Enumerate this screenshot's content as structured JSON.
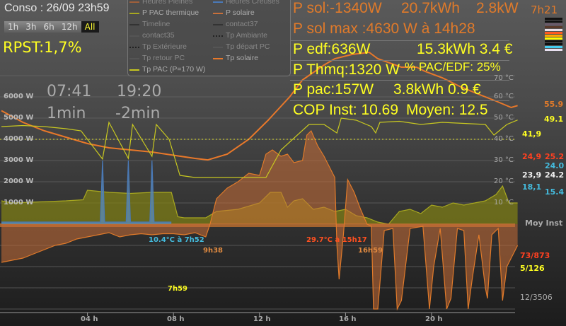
{
  "header": {
    "conso_title": "Conso : 26/09 23h59",
    "zoom_buttons": [
      "1h",
      "3h",
      "6h",
      "12h",
      "All"
    ],
    "zoom_active": "All",
    "rpst": "RPST:1,7%"
  },
  "legend": [
    {
      "label": "Heures Pleines",
      "color": "#a0603a",
      "style": "line"
    },
    {
      "label": "Heures Creuses",
      "color": "#4a7ab8",
      "style": "line"
    },
    {
      "label": "P PAC thermique",
      "color": "#a8a820",
      "style": "line"
    },
    {
      "label": "P solaire",
      "color": "#c8703a",
      "style": "line"
    },
    {
      "label": "Timeline",
      "color": "#333333",
      "style": "line"
    },
    {
      "label": "contact37",
      "color": "#333333",
      "style": "line"
    },
    {
      "label": "contact35",
      "color": "#555555",
      "style": "line"
    },
    {
      "label": "Tp Ambiante",
      "color": "#333333",
      "style": "dots"
    },
    {
      "label": "Tp Extérieure",
      "color": "#333333",
      "style": "dots"
    },
    {
      "label": "Tp départ PC",
      "color": "#555555",
      "style": "line"
    },
    {
      "label": "Tp retour PC",
      "color": "#555555",
      "style": "line"
    },
    {
      "label": "Tp solaire",
      "color": "#e8782a",
      "style": "line"
    },
    {
      "label": "Tp PAC (P=170 W)",
      "color": "#c8c820",
      "style": "line"
    }
  ],
  "stats": {
    "p_sol": "P sol:-1340W",
    "p_sol_kwh": "20.7kWh",
    "p_sol_kw": "2.8kW",
    "p_sol_time": "7h21",
    "p_sol_max": "P sol max :4630 W à 14h28",
    "p_edf": "P edf:636W",
    "p_edf_kwh": "15.3kWh 3.4 €",
    "p_thmq": "P Thmq:1320 W",
    "pac_edf": "% PAC/EDF: 25%",
    "p_pac": "P pac:157W",
    "p_pac_kwh": "3.8kWh 0.9 €",
    "cop_inst": "COP Inst: 10.69",
    "cop_moyen": "Moyen: 12.5"
  },
  "color_bars": [
    "#111111",
    "#111111",
    "#6a5a6a",
    "#5a3a2a",
    "#e8e0e8",
    "#ff5a20",
    "#ffaa00",
    "#ffff00",
    "#111111",
    "#111111",
    "#44ccee",
    "#e8e0f0"
  ],
  "clocks": {
    "sunrise": "07:41",
    "sunset": "19:20",
    "sunrise_delta": "1min",
    "sunset_delta": "-2min"
  },
  "annotations": {
    "ext_min": "10.4°C à 7h52",
    "sol_start": "9h38",
    "ext_max": "29.7°C à 15h17",
    "sol_end": "16h59",
    "pac_time": "7h59"
  },
  "right_panel": {
    "moy_inst": "Moy Inst",
    "hp": "73/873",
    "hc": "5/126",
    "total": "12/3506",
    "temps": [
      {
        "moy": "",
        "inst": "55.9",
        "color": "#e07a2a"
      },
      {
        "moy": "",
        "inst": "49.1",
        "color": "#ffff22"
      },
      {
        "moy": "41,9",
        "inst": "",
        "color": "#ffff22"
      },
      {
        "moy": "24,9",
        "inst": "25.2",
        "color": "#ff4020"
      },
      {
        "moy": "",
        "inst": "24.0",
        "color": "#44bbdd"
      },
      {
        "moy": "23,9",
        "inst": "24.2",
        "color": "#f0f0f0"
      },
      {
        "moy": "18,1",
        "inst": "15.4",
        "color": "#44bbdd"
      }
    ]
  },
  "chart_data": {
    "type": "area",
    "x_unit": "h",
    "xlim": [
      0,
      24
    ],
    "x_ticks": [
      "04 h",
      "08 h",
      "12 h",
      "16 h",
      "20 h"
    ],
    "y_left": {
      "ticks": [
        "1000 W",
        "2000 W",
        "3000 W",
        "4000 W",
        "5000 W",
        "6000 W"
      ],
      "ylim": [
        -4000,
        7000
      ]
    },
    "y_right": {
      "ticks": [
        "10 °C",
        "20 °C",
        "30 °C",
        "40 °C",
        "50 °C",
        "60 °C",
        "70 °C"
      ],
      "ylim": [
        -40,
        70
      ]
    },
    "grid": true,
    "reference_line_c": 40,
    "series": [
      {
        "name": "P solaire",
        "axis": "W",
        "color": "#e07a2a",
        "x": [
          0,
          0.5,
          1,
          1.5,
          2,
          2.5,
          3,
          3.5,
          4,
          4.5,
          5,
          5.5,
          6,
          6.5,
          7,
          7.5,
          8,
          8.5,
          9,
          9.5,
          9.7,
          10,
          10.5,
          11,
          11.5,
          12,
          12.3,
          12.6,
          13,
          13.3,
          13.6,
          14,
          14.2,
          14.4,
          14.7,
          15,
          15.3,
          15.5,
          15.6,
          15.7,
          15.9,
          16.1,
          16.4,
          16.7,
          17,
          17.2,
          17.3,
          17.5,
          17.8,
          18.2,
          18.4,
          18.6,
          19,
          19.6,
          19.9,
          20.1,
          20.4,
          20.7,
          20.9,
          21.2,
          21.5,
          21.7,
          21.9,
          22.2,
          22.5,
          22.6,
          22.8,
          23.1,
          23.3,
          23.5,
          24
        ],
        "y": [
          -1800,
          -1700,
          -1600,
          -1400,
          -1200,
          -1000,
          -900,
          -700,
          -600,
          -500,
          -400,
          -600,
          -500,
          -450,
          -500,
          -450,
          -450,
          -500,
          -400,
          -600,
          0,
          1200,
          1700,
          2000,
          2400,
          2300,
          3300,
          3500,
          3200,
          3300,
          2900,
          3000,
          4200,
          4400,
          3700,
          3200,
          2600,
          2200,
          -1000,
          -2600,
          -500,
          2100,
          1500,
          700,
          0,
          -100,
          -4000,
          -4000,
          -300,
          -200,
          -4000,
          -3600,
          -200,
          -100,
          -4000,
          -2000,
          -200,
          -4000,
          -3500,
          -200,
          -300,
          -4000,
          -2500,
          -500,
          -3000,
          -3500,
          -500,
          -200,
          -3600,
          -2000,
          -1000
        ]
      },
      {
        "name": "P PAC thermique",
        "axis": "W",
        "color": "#a8a820",
        "x": [
          0,
          0.5,
          3,
          3.8,
          4,
          5,
          6,
          7,
          7.9,
          8.2,
          8.5,
          9.5,
          10,
          11,
          11.5,
          12,
          12.5,
          13,
          13.3,
          13.6,
          14,
          14.5,
          15,
          15.5,
          16,
          16.5,
          17,
          17.5,
          18,
          18.5,
          19,
          19.5,
          20,
          20.5,
          21,
          21.5,
          22,
          22.5,
          23,
          23.3,
          23.6,
          24
        ],
        "y": [
          1100,
          1000,
          1100,
          1150,
          1600,
          1500,
          1450,
          1500,
          1500,
          350,
          300,
          300,
          600,
          700,
          850,
          1000,
          1500,
          1500,
          800,
          1100,
          1200,
          700,
          800,
          600,
          700,
          400,
          300,
          100,
          0,
          600,
          700,
          500,
          900,
          800,
          1000,
          900,
          1000,
          1100,
          1400,
          1800,
          1000,
          1000
        ]
      },
      {
        "name": "Heures Creuses",
        "axis": "W",
        "color": "#4a7ab8",
        "x": [
          0,
          4.6,
          4.7,
          4.8,
          5.8,
          5.9,
          6.0,
          6.9,
          7.0,
          7.1,
          7.9
        ],
        "y": [
          100,
          100,
          3000,
          100,
          100,
          3000,
          100,
          100,
          3000,
          100,
          100
        ]
      },
      {
        "name": "Tp solaire",
        "axis": "°C",
        "color": "#e8782a",
        "x": [
          0,
          1,
          2,
          3,
          4,
          5,
          6,
          7,
          8,
          9,
          9.6,
          10.5,
          11.5,
          12.4,
          13.4,
          14,
          15,
          15.5,
          16.3,
          17.1,
          17.5,
          18.6,
          19.3,
          19.7,
          20.5,
          21.3,
          22,
          23,
          23.7,
          24
        ],
        "y": [
          53.5,
          48,
          44,
          41,
          38,
          36,
          35,
          34,
          32.5,
          31,
          30.3,
          33,
          40,
          49,
          60,
          68,
          75,
          78,
          80,
          81,
          78,
          74,
          74,
          72,
          69,
          65,
          62,
          58,
          55,
          55.9
        ]
      },
      {
        "name": "Tp PAC (P=170 W)",
        "axis": "°C",
        "color": "#c8c820",
        "x": [
          0,
          1,
          2,
          3,
          3.7,
          4.7,
          5.0,
          5.9,
          6.1,
          7.0,
          7.2,
          7.8,
          8.3,
          9,
          10,
          11,
          12.3,
          13,
          14.3,
          15,
          15.6,
          15.8,
          16.5,
          17.2,
          17.4,
          17.6,
          18.5,
          19.5,
          20.5,
          21.5,
          22.5,
          22.9,
          23.5,
          24
        ],
        "y": [
          46,
          46.5,
          46,
          45,
          44,
          30.7,
          48,
          31,
          47,
          32,
          47,
          40,
          23,
          22,
          22,
          22,
          22,
          35,
          47,
          47,
          43,
          50,
          49,
          46,
          43,
          48,
          48.5,
          47,
          48,
          47.5,
          47,
          42,
          47,
          49.1
        ]
      }
    ]
  }
}
